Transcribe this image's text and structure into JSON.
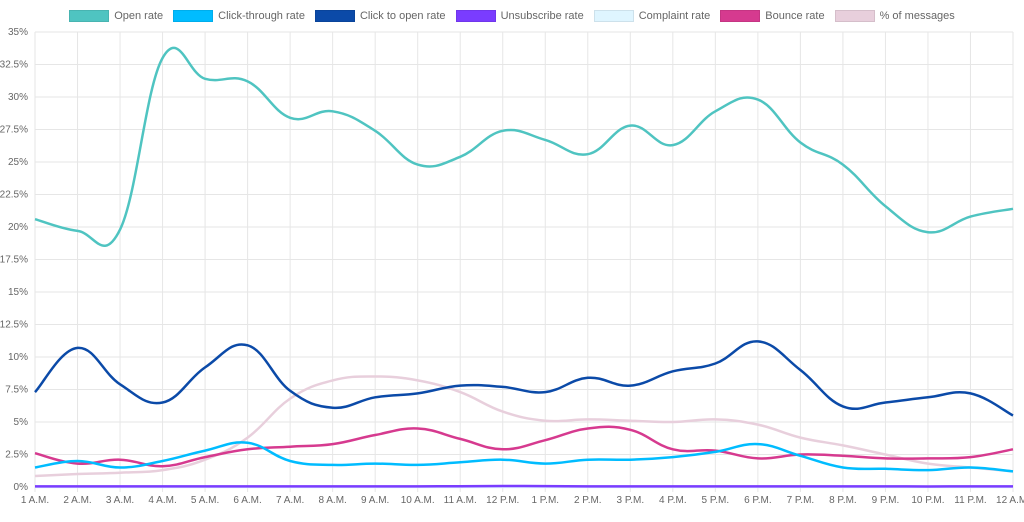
{
  "chart_data": {
    "type": "line",
    "title": "",
    "xlabel": "",
    "ylabel": "",
    "ylim": [
      0,
      35
    ],
    "y_ticks": [
      "0%",
      "2.5%",
      "5%",
      "7.5%",
      "10%",
      "12.5%",
      "15%",
      "17.5%",
      "20%",
      "22.5%",
      "25%",
      "27.5%",
      "30%",
      "32.5%",
      "35%"
    ],
    "grid": true,
    "legend_position": "top",
    "categories": [
      "1 A.M.",
      "2 A.M.",
      "3 A.M.",
      "4 A.M.",
      "5 A.M.",
      "6 A.M.",
      "7 A.M.",
      "8 A.M.",
      "9 A.M.",
      "10 A.M.",
      "11 A.M.",
      "12 P.M.",
      "1 P.M.",
      "2 P.M.",
      "3 P.M.",
      "4 P.M.",
      "5 P.M.",
      "6 P.M.",
      "7 P.M.",
      "8 P.M.",
      "9 P.M.",
      "10 P.M.",
      "11 P.M.",
      "12 A.M."
    ],
    "series": [
      {
        "name": "Open rate",
        "color": "#4fc4c1",
        "values": [
          20.6,
          19.7,
          19.8,
          33.0,
          31.4,
          31.2,
          28.4,
          28.9,
          27.4,
          24.8,
          25.4,
          27.4,
          26.7,
          25.6,
          27.8,
          26.3,
          28.9,
          29.8,
          26.5,
          24.8,
          21.6,
          19.6,
          20.8,
          21.4
        ]
      },
      {
        "name": "Click-through rate",
        "color": "#00bcff",
        "values": [
          1.5,
          2.0,
          1.5,
          2.0,
          2.8,
          3.4,
          2.0,
          1.7,
          1.8,
          1.7,
          1.9,
          2.1,
          1.8,
          2.1,
          2.1,
          2.3,
          2.7,
          3.3,
          2.4,
          1.5,
          1.4,
          1.3,
          1.5,
          1.2
        ]
      },
      {
        "name": "Click to open rate",
        "color": "#0b4aa8",
        "values": [
          7.3,
          10.7,
          7.9,
          6.5,
          9.2,
          10.9,
          7.4,
          6.1,
          6.9,
          7.2,
          7.8,
          7.7,
          7.3,
          8.4,
          7.8,
          8.9,
          9.5,
          11.2,
          9.0,
          6.2,
          6.5,
          6.9,
          7.2,
          5.5
        ]
      },
      {
        "name": "Unsubscribe rate",
        "color": "#7a3cff",
        "values": [
          0.05,
          0.05,
          0.05,
          0.05,
          0.05,
          0.05,
          0.05,
          0.05,
          0.05,
          0.05,
          0.06,
          0.08,
          0.07,
          0.05,
          0.05,
          0.05,
          0.05,
          0.05,
          0.05,
          0.05,
          0.05,
          0.04,
          0.05,
          0.05
        ]
      },
      {
        "name": "Complaint rate",
        "color": "#dff5ff",
        "values": [
          0,
          0,
          0,
          0,
          0,
          0,
          0,
          0,
          0,
          0,
          0,
          0,
          0,
          0,
          0,
          0,
          0,
          0,
          0,
          0,
          0,
          0,
          0,
          0
        ]
      },
      {
        "name": "Bounce rate",
        "color": "#d63a8f",
        "values": [
          2.6,
          1.8,
          2.1,
          1.6,
          2.3,
          2.9,
          3.1,
          3.3,
          4.0,
          4.5,
          3.7,
          2.9,
          3.6,
          4.5,
          4.4,
          2.9,
          2.8,
          2.2,
          2.5,
          2.4,
          2.2,
          2.2,
          2.3,
          2.9
        ]
      },
      {
        "name": "% of messages",
        "color": "#e8cfdc",
        "values": [
          0.85,
          1.0,
          1.1,
          1.3,
          2.1,
          3.8,
          6.8,
          8.2,
          8.5,
          8.2,
          7.3,
          5.8,
          5.1,
          5.2,
          5.1,
          5.0,
          5.2,
          4.8,
          3.8,
          3.2,
          2.5,
          1.8,
          1.5,
          1.2
        ]
      }
    ]
  }
}
